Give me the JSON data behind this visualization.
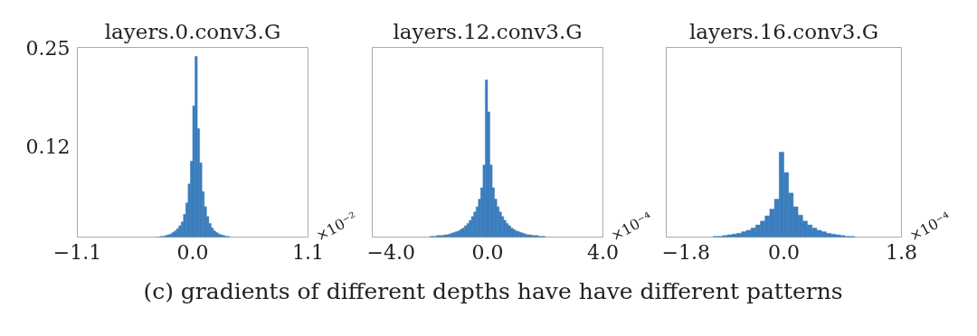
{
  "chart_data": [
    {
      "type": "histogram",
      "title": "layers.0.conv3.G",
      "xlabel": "×10⁻²",
      "color": "#3b7dbd",
      "xlim": [
        -1.1,
        1.1
      ],
      "xticks": [
        {
          "value": -1.1,
          "label": "−1.1"
        },
        {
          "value": 0,
          "label": "0.0"
        },
        {
          "value": 1.1,
          "label": "1.1"
        }
      ],
      "ylim": [
        0,
        0.25
      ],
      "yticks": [
        0.12,
        0.25
      ],
      "bins": [
        -0.352,
        -0.33,
        -0.308,
        -0.286,
        -0.264,
        -0.242,
        -0.22,
        -0.198,
        -0.176,
        -0.154,
        -0.132,
        -0.11,
        -0.088,
        -0.066,
        -0.044,
        -0.022,
        0,
        0.022,
        0.044,
        0.066,
        0.088,
        0.11,
        0.132,
        0.154,
        0.176,
        0.198,
        0.22,
        0.242,
        0.264,
        0.286,
        0.308,
        0.33,
        0.352
      ],
      "values": [
        0,
        0,
        0.001,
        0.001,
        0.002,
        0.003,
        0.004,
        0.006,
        0.008,
        0.011,
        0.015,
        0.02,
        0.03,
        0.045,
        0.07,
        0.1,
        0.173,
        0.238,
        0.143,
        0.098,
        0.06,
        0.04,
        0.027,
        0.018,
        0.012,
        0.008,
        0.006,
        0.004,
        0.003,
        0.002,
        0.001,
        0.001
      ]
    },
    {
      "type": "histogram",
      "title": "layers.12.conv3.G",
      "xlabel": "×10⁻⁴",
      "color": "#3b7dbd",
      "xlim": [
        -4.0,
        4.0
      ],
      "xticks": [
        {
          "value": -4,
          "label": "−4.0"
        },
        {
          "value": 0,
          "label": "0.0"
        },
        {
          "value": 4,
          "label": "4.0"
        }
      ],
      "ylim": [
        0,
        0.25
      ],
      "tick_labels": "x",
      "annotations": [
        "(c) gradients of different depths have have different patterns"
      ],
      "bins": [
        -2.0,
        -1.92,
        -1.84,
        -1.76,
        -1.68,
        -1.6,
        -1.52,
        -1.44,
        -1.36,
        -1.28,
        -1.2,
        -1.12,
        -1.04,
        -0.96,
        -0.88,
        -0.8,
        -0.72,
        -0.64,
        -0.56,
        -0.48,
        -0.4,
        -0.32,
        -0.24,
        -0.16,
        -0.08,
        0,
        0.08,
        0.16,
        0.24,
        0.32,
        0.4,
        0.48,
        0.56,
        0.64,
        0.72,
        0.8,
        0.88,
        0.96,
        1.04,
        1.12,
        1.2,
        1.28,
        1.36,
        1.44,
        1.52,
        1.6,
        1.68,
        1.76,
        1.84,
        1.92,
        2.0
      ],
      "values": [
        0.001,
        0.001,
        0.001,
        0.002,
        0.002,
        0.002,
        0.003,
        0.003,
        0.004,
        0.005,
        0.006,
        0.007,
        0.008,
        0.01,
        0.012,
        0.015,
        0.018,
        0.022,
        0.027,
        0.033,
        0.04,
        0.05,
        0.065,
        0.095,
        0.207,
        0.165,
        0.095,
        0.065,
        0.05,
        0.04,
        0.033,
        0.027,
        0.022,
        0.018,
        0.015,
        0.012,
        0.01,
        0.008,
        0.007,
        0.006,
        0.005,
        0.004,
        0.003,
        0.003,
        0.002,
        0.002,
        0.002,
        0.001,
        0.001,
        0.001
      ]
    },
    {
      "type": "histogram",
      "title": "layers.16.conv3.G",
      "xlabel": "×10⁻⁴",
      "color": "#3b7dbd",
      "xlim": [
        -1.8,
        1.8
      ],
      "xticks": [
        {
          "value": -1.8,
          "label": "−1.8"
        },
        {
          "value": 0,
          "label": "0.0"
        },
        {
          "value": 1.8,
          "label": "1.8"
        }
      ],
      "ylim": [
        0,
        0.25
      ],
      "tick_labels": "x",
      "bins": [
        -1.08,
        -1.008,
        -0.936,
        -0.864,
        -0.792,
        -0.72,
        -0.648,
        -0.576,
        -0.504,
        -0.432,
        -0.36,
        -0.288,
        -0.216,
        -0.144,
        -0.072,
        0,
        0.072,
        0.144,
        0.216,
        0.288,
        0.36,
        0.432,
        0.504,
        0.576,
        0.648,
        0.72,
        0.792,
        0.864,
        0.936,
        1.008,
        1.08
      ],
      "values": [
        0.001,
        0.001,
        0.002,
        0.003,
        0.004,
        0.005,
        0.007,
        0.009,
        0.012,
        0.016,
        0.021,
        0.028,
        0.037,
        0.05,
        0.112,
        0.085,
        0.058,
        0.04,
        0.029,
        0.021,
        0.016,
        0.012,
        0.009,
        0.007,
        0.005,
        0.004,
        0.003,
        0.002,
        0.001,
        0.001
      ]
    }
  ]
}
